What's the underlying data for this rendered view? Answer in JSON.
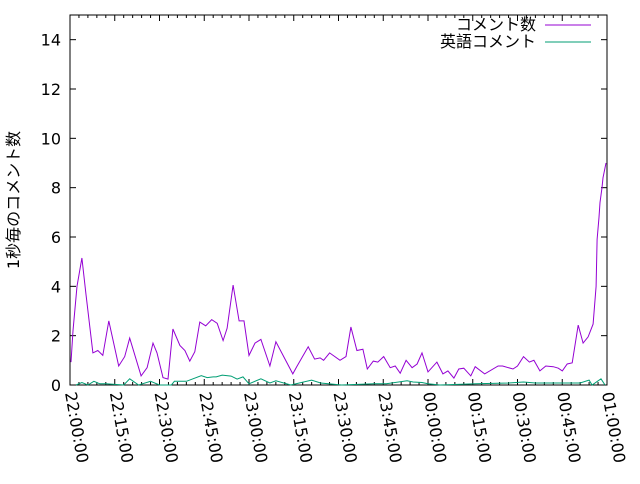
{
  "chart_data": {
    "type": "line",
    "title": "",
    "xlabel": "",
    "ylabel": "1秒毎のコメント数",
    "xlim": [
      "22:00:00",
      "01:00:00"
    ],
    "ylim": [
      0,
      15
    ],
    "x_ticks": [
      "22:00:00",
      "22:15:00",
      "22:30:00",
      "22:45:00",
      "23:00:00",
      "23:15:00",
      "23:30:00",
      "23:45:00",
      "00:00:00",
      "00:15:00",
      "00:30:00",
      "00:45:00",
      "01:00:00"
    ],
    "y_ticks": [
      "0",
      "2",
      "4",
      "6",
      "8",
      "10",
      "12",
      "14"
    ],
    "grid": false,
    "legend_position": "top-right",
    "series": [
      {
        "name": "コメント数",
        "color": "#9400d3",
        "points": [
          [
            "22:00:20",
            0.93
          ],
          [
            "22:01:00",
            2.2
          ],
          [
            "22:02:20",
            4.0
          ],
          [
            "22:04:00",
            5.15
          ],
          [
            "22:05:20",
            3.7
          ],
          [
            "22:07:40",
            1.3
          ],
          [
            "22:09:20",
            1.4
          ],
          [
            "22:11:00",
            1.2
          ],
          [
            "22:13:00",
            2.6
          ],
          [
            "22:16:20",
            0.77
          ],
          [
            "22:18:20",
            1.15
          ],
          [
            "22:20:00",
            1.9
          ],
          [
            "22:23:50",
            0.37
          ],
          [
            "22:25:50",
            0.7
          ],
          [
            "22:27:50",
            1.7
          ],
          [
            "22:29:10",
            1.3
          ],
          [
            "22:31:10",
            0.3
          ],
          [
            "22:32:50",
            0.24
          ],
          [
            "22:34:30",
            2.27
          ],
          [
            "22:36:50",
            1.6
          ],
          [
            "22:38:30",
            1.4
          ],
          [
            "22:40:10",
            0.97
          ],
          [
            "22:41:50",
            1.35
          ],
          [
            "22:43:30",
            2.55
          ],
          [
            "22:45:30",
            2.4
          ],
          [
            "22:47:30",
            2.65
          ],
          [
            "22:49:20",
            2.5
          ],
          [
            "22:51:20",
            1.8
          ],
          [
            "22:52:40",
            2.3
          ],
          [
            "22:54:40",
            4.05
          ],
          [
            "22:56:40",
            2.6
          ],
          [
            "22:58:20",
            2.6
          ],
          [
            "23:00:00",
            1.2
          ],
          [
            "23:02:00",
            1.7
          ],
          [
            "23:04:00",
            1.85
          ],
          [
            "23:07:00",
            0.77
          ],
          [
            "23:09:00",
            1.75
          ],
          [
            "23:14:40",
            0.45
          ],
          [
            "23:16:00",
            0.74
          ],
          [
            "23:19:50",
            1.55
          ],
          [
            "23:22:00",
            1.05
          ],
          [
            "23:23:50",
            1.1
          ],
          [
            "23:25:00",
            1.0
          ],
          [
            "23:27:00",
            1.3
          ],
          [
            "23:30:30",
            1.0
          ],
          [
            "23:32:30",
            1.15
          ],
          [
            "23:34:10",
            2.35
          ],
          [
            "23:36:10",
            1.4
          ],
          [
            "23:38:10",
            1.45
          ],
          [
            "23:39:40",
            0.65
          ],
          [
            "23:41:40",
            0.97
          ],
          [
            "23:43:10",
            0.93
          ],
          [
            "23:45:10",
            1.15
          ],
          [
            "23:47:20",
            0.7
          ],
          [
            "23:49:00",
            0.77
          ],
          [
            "23:50:40",
            0.48
          ],
          [
            "23:52:40",
            1.0
          ],
          [
            "23:54:40",
            0.7
          ],
          [
            "23:56:20",
            0.85
          ],
          [
            "23:58:00",
            1.3
          ],
          [
            "00:00:00",
            0.53
          ],
          [
            "00:03:00",
            0.93
          ],
          [
            "00:05:00",
            0.45
          ],
          [
            "00:06:40",
            0.57
          ],
          [
            "00:08:40",
            0.28
          ],
          [
            "00:10:20",
            0.65
          ],
          [
            "00:12:00",
            0.68
          ],
          [
            "00:14:20",
            0.37
          ],
          [
            "00:15:50",
            0.74
          ],
          [
            "00:19:00",
            0.45
          ],
          [
            "00:23:30",
            0.77
          ],
          [
            "00:25:00",
            0.77
          ],
          [
            "00:28:30",
            0.65
          ],
          [
            "00:30:00",
            0.77
          ],
          [
            "00:32:00",
            1.15
          ],
          [
            "00:34:00",
            0.93
          ],
          [
            "00:35:30",
            1.0
          ],
          [
            "00:37:30",
            0.57
          ],
          [
            "00:39:30",
            0.77
          ],
          [
            "00:42:00",
            0.74
          ],
          [
            "00:43:40",
            0.68
          ],
          [
            "00:45:00",
            0.57
          ],
          [
            "00:46:40",
            0.85
          ],
          [
            "00:48:20",
            0.9
          ],
          [
            "00:50:20",
            2.43
          ],
          [
            "00:52:00",
            1.7
          ],
          [
            "00:53:40",
            1.95
          ],
          [
            "00:55:20",
            2.47
          ],
          [
            "00:56:20",
            4.0
          ],
          [
            "00:56:40",
            5.9
          ],
          [
            "00:57:20",
            6.8
          ],
          [
            "00:57:40",
            7.4
          ],
          [
            "00:58:20",
            8.0
          ],
          [
            "00:58:40",
            8.4
          ],
          [
            "00:59:40",
            9.0
          ]
        ]
      },
      {
        "name": "英語コメント",
        "color": "#009e73",
        "points": [
          [
            "22:02:00",
            0
          ],
          [
            "22:04:00",
            0.1
          ],
          [
            "22:06:00",
            0
          ],
          [
            "22:08:00",
            0.15
          ],
          [
            "22:10:00",
            0.05
          ],
          [
            "22:12:00",
            0.05
          ],
          [
            "22:18:00",
            0
          ],
          [
            "22:20:00",
            0.25
          ],
          [
            "22:23:00",
            0
          ],
          [
            "22:27:00",
            0.15
          ],
          [
            "22:30:00",
            0
          ],
          [
            "22:34:00",
            0
          ],
          [
            "22:35:00",
            0.15
          ],
          [
            "22:39:00",
            0.15
          ],
          [
            "22:44:00",
            0.38
          ],
          [
            "22:46:00",
            0.3
          ],
          [
            "22:48:00",
            0.33
          ],
          [
            "22:49:00",
            0.33
          ],
          [
            "22:51:00",
            0.4
          ],
          [
            "22:54:00",
            0.36
          ],
          [
            "22:56:00",
            0.24
          ],
          [
            "22:58:00",
            0.33
          ],
          [
            "23:00:00",
            0.05
          ],
          [
            "23:04:00",
            0.25
          ],
          [
            "23:07:00",
            0.08
          ],
          [
            "23:09:00",
            0.17
          ],
          [
            "23:14:00",
            0
          ],
          [
            "23:21:00",
            0.2
          ],
          [
            "23:24:00",
            0.08
          ],
          [
            "23:31:00",
            0
          ],
          [
            "23:42:00",
            0.05
          ],
          [
            "23:46:00",
            0.05
          ],
          [
            "23:53:00",
            0.17
          ],
          [
            "23:55:00",
            0.12
          ],
          [
            "23:58:00",
            0.1
          ],
          [
            "00:00:00",
            0.05
          ],
          [
            "00:04:00",
            0
          ],
          [
            "00:16:00",
            0.05
          ],
          [
            "00:27:00",
            0.08
          ],
          [
            "00:32:00",
            0.12
          ],
          [
            "00:36:00",
            0.08
          ],
          [
            "00:51:00",
            0.08
          ],
          [
            "00:54:00",
            0.2
          ],
          [
            "00:55:00",
            0
          ],
          [
            "00:58:00",
            0.25
          ],
          [
            "00:59:20",
            0
          ]
        ]
      }
    ]
  }
}
